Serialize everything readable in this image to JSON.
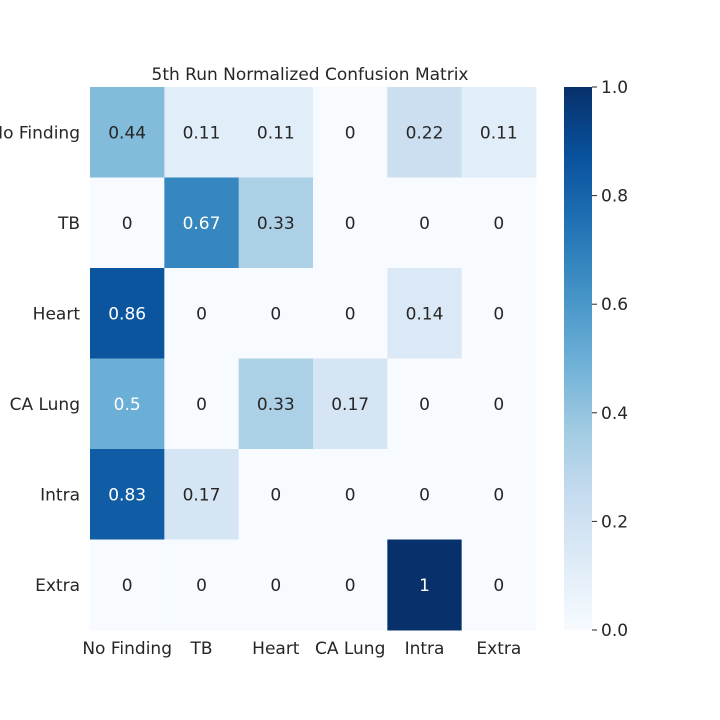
{
  "chart_data": {
    "type": "heatmap",
    "title": "5th Run Normalized Confusion Matrix",
    "row_labels": [
      "No Finding",
      "TB",
      "Heart",
      "CA Lung",
      "Intra",
      "Extra"
    ],
    "col_labels": [
      "No Finding",
      "TB",
      "Heart",
      "CA Lung",
      "Intra",
      "Extra"
    ],
    "values": [
      [
        0.44,
        0.11,
        0.11,
        0,
        0.22,
        0.11
      ],
      [
        0,
        0.67,
        0.33,
        0,
        0,
        0
      ],
      [
        0.86,
        0,
        0,
        0,
        0.14,
        0
      ],
      [
        0.5,
        0,
        0.33,
        0.17,
        0,
        0
      ],
      [
        0.83,
        0.17,
        0,
        0,
        0,
        0
      ],
      [
        0,
        0,
        0,
        0,
        1,
        0
      ]
    ],
    "cell_labels": [
      [
        "0.44",
        "0.11",
        "0.11",
        "0",
        "0.22",
        "0.11"
      ],
      [
        "0",
        "0.67",
        "0.33",
        "0",
        "0",
        "0"
      ],
      [
        "0.86",
        "0",
        "0",
        "0",
        "0.14",
        "0"
      ],
      [
        "0.5",
        "0",
        "0.33",
        "0.17",
        "0",
        "0"
      ],
      [
        "0.83",
        "0.17",
        "0",
        "0",
        "0",
        "0"
      ],
      [
        "0",
        "0",
        "0",
        "0",
        "1",
        "0"
      ]
    ],
    "colorbar": {
      "range": [
        0,
        1
      ],
      "ticks": [
        0,
        0.2,
        0.4,
        0.6,
        0.8,
        1
      ],
      "tick_labels": [
        "0.0",
        "0.2",
        "0.4",
        "0.6",
        "0.8",
        "1.0"
      ],
      "colormap": "Blues",
      "low_color": "#f7fbff",
      "high_color": "#08306b"
    },
    "grid": false
  }
}
